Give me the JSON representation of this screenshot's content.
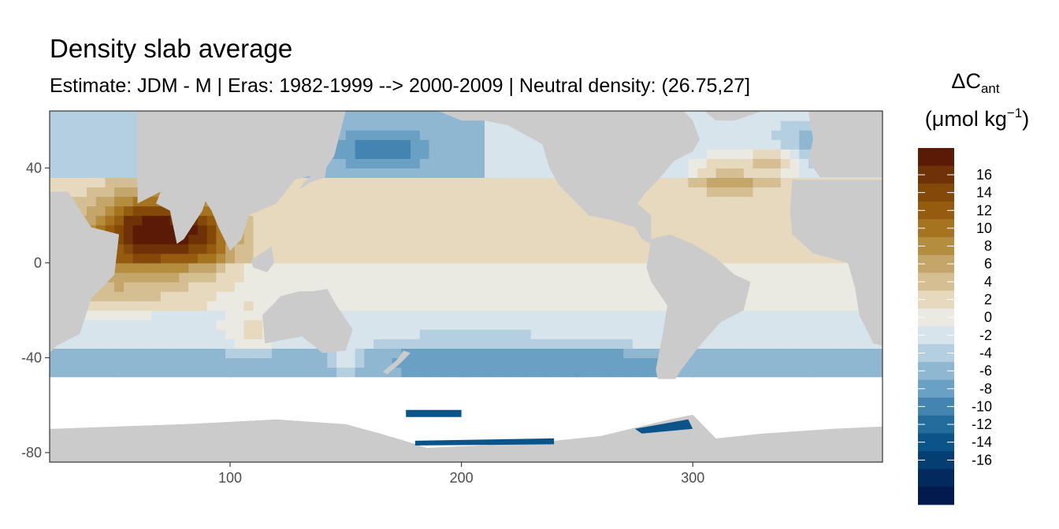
{
  "chart_data": {
    "type": "heatmap",
    "title": "Density slab average",
    "subtitle": "Estimate: JDM - M | Eras: 1982-1999 --> 2000-2009 | Neutral density: (26.75,27]",
    "xlabel": "",
    "ylabel": "",
    "xlim": [
      22,
      382
    ],
    "ylim": [
      -84,
      64
    ],
    "x_ticks": [
      100,
      200,
      300
    ],
    "y_ticks": [
      40,
      0,
      -40,
      -80
    ],
    "grid": true,
    "legend": {
      "title_main": "ΔC",
      "title_sub": "ant",
      "unit_prefix": "(μmol kg",
      "unit_sup": "−1",
      "unit_suffix": ")",
      "placement": "right",
      "breaks": [
        18,
        16,
        14,
        12,
        10,
        8,
        6,
        4,
        2,
        0,
        -2,
        -4,
        -6,
        -8,
        -10,
        -12,
        -14,
        -16,
        -18
      ],
      "labels": [
        "16",
        "14",
        "12",
        "10",
        "8",
        "6",
        "4",
        "2",
        "0",
        "-2",
        "-4",
        "-6",
        "-8",
        "-10",
        "-12",
        "-14",
        "-16"
      ],
      "colors": [
        "#5a1a05",
        "#6f3206",
        "#844808",
        "#955c10",
        "#a6741f",
        "#b48d3f",
        "#c4a56a",
        "#d5bf92",
        "#e6d9bd",
        "#eae9e2",
        "#d7e4ec",
        "#b4cfe0",
        "#8fb7d2",
        "#6aa0c4",
        "#4384b1",
        "#236d9d",
        "#0a548a",
        "#053e73",
        "#032a5e",
        "#021a4d"
      ]
    },
    "colors": {
      "land": "#cbcbcb",
      "no_data": "#ffffff",
      "panel_border": "#333333",
      "grid": "#ebebeb"
    }
  }
}
